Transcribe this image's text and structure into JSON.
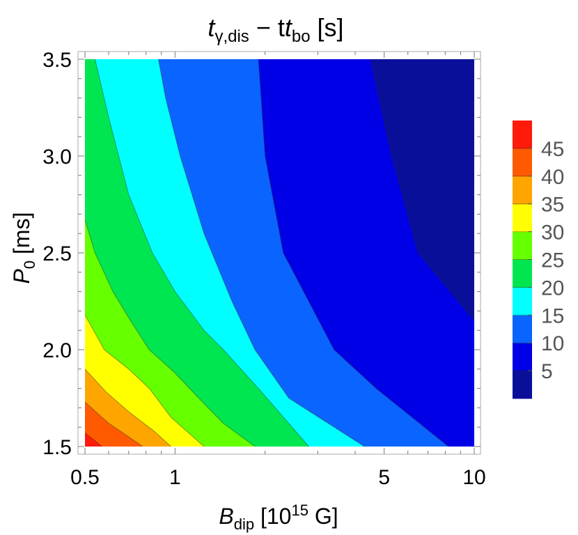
{
  "chart_data": {
    "type": "contour",
    "title": {
      "main": "t",
      "sub": "γ,dis",
      "mid": " − t",
      "sub2": "bo",
      "tail": " [s]"
    },
    "xlabel": {
      "main": "B",
      "sub": "dip",
      "tail": " [10",
      "sup": "15",
      "tail2": " G]"
    },
    "ylabel": {
      "main": "P",
      "sub": "0",
      "tail": " [ms]"
    },
    "x_scale": "log",
    "xlim": [
      0.5,
      10
    ],
    "ylim": [
      1.5,
      3.5
    ],
    "x_ticks": [
      {
        "value": 0.5,
        "label": "0.5"
      },
      {
        "value": 1,
        "label": "1"
      },
      {
        "value": 5,
        "label": "5"
      },
      {
        "value": 10,
        "label": "10"
      }
    ],
    "y_ticks": [
      {
        "value": 1.5,
        "label": "1.5"
      },
      {
        "value": 2.0,
        "label": "2.0"
      },
      {
        "value": 2.5,
        "label": "2.5"
      },
      {
        "value": 3.0,
        "label": "3.0"
      },
      {
        "value": 3.5,
        "label": "3.5"
      }
    ],
    "levels": [
      0,
      5,
      10,
      15,
      20,
      25,
      30,
      35,
      40,
      45,
      50
    ],
    "colorbar_labels": [
      "45",
      "40",
      "35",
      "30",
      "25",
      "20",
      "15",
      "10",
      "5"
    ],
    "colors": [
      "#0a0f9a",
      "#0000e6",
      "#0a64ff",
      "#00ffff",
      "#00e650",
      "#66ff00",
      "#ffff00",
      "#ffa500",
      "#ff5a00",
      "#ff1a0a"
    ],
    "contour_lines": [
      {
        "level": 5,
        "points": [
          [
            4.5,
            3.5
          ],
          [
            5.3,
            3.0
          ],
          [
            6.5,
            2.5
          ],
          [
            10.0,
            2.15
          ]
        ]
      },
      {
        "level": 10,
        "points": [
          [
            1.9,
            3.5
          ],
          [
            2.0,
            3.0
          ],
          [
            2.3,
            2.5
          ],
          [
            3.4,
            2.0
          ],
          [
            4.7,
            1.8
          ],
          [
            8.2,
            1.5
          ]
        ]
      },
      {
        "level": 15,
        "points": [
          [
            0.88,
            3.5
          ],
          [
            0.93,
            3.3
          ],
          [
            1.04,
            3.0
          ],
          [
            1.25,
            2.6
          ],
          [
            1.55,
            2.25
          ],
          [
            1.85,
            2.0
          ],
          [
            2.4,
            1.75
          ],
          [
            4.3,
            1.5
          ]
        ]
      },
      {
        "level": 20,
        "points": [
          [
            0.54,
            3.5
          ],
          [
            0.6,
            3.2
          ],
          [
            0.7,
            2.8
          ],
          [
            0.84,
            2.5
          ],
          [
            1.0,
            2.3
          ],
          [
            1.25,
            2.1
          ],
          [
            1.45,
            2.0
          ],
          [
            1.9,
            1.8
          ],
          [
            2.8,
            1.5
          ]
        ]
      },
      {
        "level": 25,
        "points": [
          [
            0.5,
            2.67
          ],
          [
            0.54,
            2.5
          ],
          [
            0.62,
            2.3
          ],
          [
            0.71,
            2.15
          ],
          [
            0.82,
            2.0
          ],
          [
            1.0,
            1.88
          ],
          [
            1.2,
            1.75
          ],
          [
            1.45,
            1.62
          ],
          [
            1.85,
            1.5
          ]
        ]
      },
      {
        "level": 30,
        "points": [
          [
            0.5,
            2.18
          ],
          [
            0.58,
            2.0
          ],
          [
            0.7,
            1.9
          ],
          [
            0.82,
            1.8
          ],
          [
            0.97,
            1.65
          ],
          [
            1.25,
            1.5
          ]
        ]
      },
      {
        "level": 35,
        "points": [
          [
            0.5,
            1.9
          ],
          [
            0.59,
            1.78
          ],
          [
            0.7,
            1.68
          ],
          [
            0.85,
            1.58
          ],
          [
            0.97,
            1.5
          ]
        ]
      },
      {
        "level": 40,
        "points": [
          [
            0.5,
            1.73
          ],
          [
            0.6,
            1.62
          ],
          [
            0.7,
            1.55
          ],
          [
            0.78,
            1.5
          ]
        ]
      },
      {
        "level": 45,
        "points": [
          [
            0.5,
            1.57
          ],
          [
            0.53,
            1.54
          ],
          [
            0.57,
            1.5
          ]
        ]
      }
    ]
  }
}
